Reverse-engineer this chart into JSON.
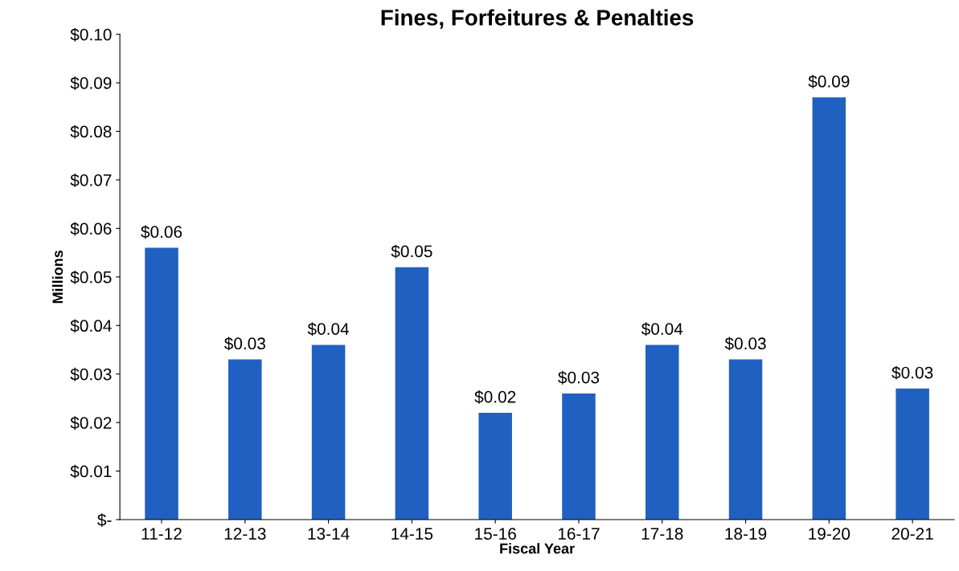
{
  "chart_data": {
    "type": "bar",
    "title": "Fines, Forfeitures & Penalties",
    "xlabel": "Fiscal Year",
    "ylabel": "Millions",
    "categories": [
      "11-12",
      "12-13",
      "13-14",
      "14-15",
      "15-16",
      "16-17",
      "17-18",
      "18-19",
      "19-20",
      "20-21"
    ],
    "values": [
      0.056,
      0.033,
      0.036,
      0.052,
      0.022,
      0.026,
      0.036,
      0.033,
      0.087,
      0.027
    ],
    "value_labels": [
      "$0.06",
      "$0.03",
      "$0.04",
      "$0.05",
      "$0.02",
      "$0.03",
      "$0.04",
      "$0.03",
      "$0.09",
      "$0.03"
    ],
    "color": "#2060c0",
    "ylim": [
      0,
      0.1
    ],
    "yticks": [
      {
        "value": 0,
        "label": "$-"
      },
      {
        "value": 0.01,
        "label": "$0.01"
      },
      {
        "value": 0.02,
        "label": "$0.02"
      },
      {
        "value": 0.03,
        "label": "$0.03"
      },
      {
        "value": 0.04,
        "label": "$0.04"
      },
      {
        "value": 0.05,
        "label": "$0.05"
      },
      {
        "value": 0.06,
        "label": "$0.06"
      },
      {
        "value": 0.07,
        "label": "$0.07"
      },
      {
        "value": 0.08,
        "label": "$0.08"
      },
      {
        "value": 0.09,
        "label": "$0.09"
      },
      {
        "value": 0.1,
        "label": "$0.10"
      }
    ],
    "grid": false
  }
}
